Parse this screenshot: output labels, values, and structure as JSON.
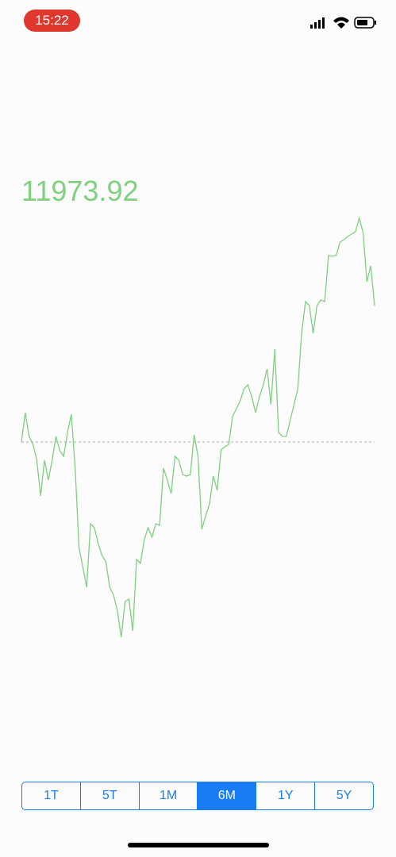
{
  "status_bar": {
    "time": "15:22"
  },
  "chart_data": {
    "type": "line",
    "title": "11973.92",
    "color": "#7fd17f",
    "values": [
      11115,
      11300,
      11150,
      11100,
      11000,
      10775,
      11000,
      10875,
      11000,
      11150,
      11060,
      11025,
      11175,
      11290,
      10950,
      10450,
      10325,
      10200,
      10600,
      10575,
      10475,
      10400,
      10360,
      10200,
      10150,
      10050,
      9885,
      10110,
      10125,
      9925,
      10375,
      10350,
      10500,
      10575,
      10515,
      10600,
      10590,
      10950,
      10875,
      10790,
      11025,
      11000,
      10910,
      10900,
      10910,
      11160,
      11025,
      10565,
      10650,
      10725,
      10900,
      10810,
      11065,
      11085,
      11100,
      11275,
      11325,
      11375,
      11450,
      11475,
      11400,
      11300,
      11400,
      11475,
      11575,
      11350,
      11700,
      11175,
      11150,
      11150,
      11250,
      11350,
      11450,
      11800,
      12000,
      11975,
      11800,
      11975,
      12010,
      12000,
      12290,
      12285,
      12290,
      12375,
      12390,
      12410,
      12425,
      12440,
      12525,
      12435,
      12125,
      12225,
      11974
    ],
    "reference_line": 11115,
    "ylim": [
      9800,
      12600
    ]
  },
  "range_selector": {
    "options": [
      "1T",
      "5T",
      "1M",
      "6M",
      "1Y",
      "5Y"
    ],
    "selected": 3
  }
}
